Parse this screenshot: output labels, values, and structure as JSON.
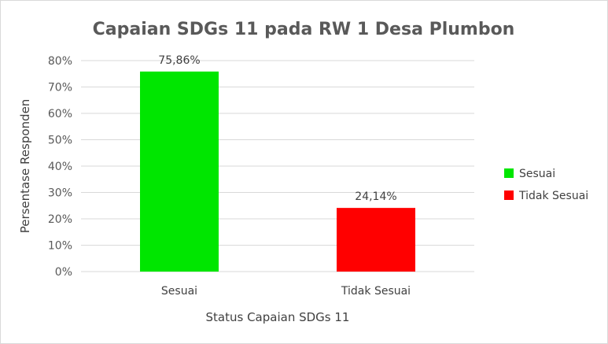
{
  "chart_data": {
    "type": "bar",
    "title": "Capaian SDGs 11 pada RW 1 Desa Plumbon",
    "xlabel": "Status Capaian SDGs 11",
    "ylabel": "Persentase Responden",
    "categories": [
      "Sesuai",
      "Tidak Sesuai"
    ],
    "values": [
      75.86,
      24.14
    ],
    "data_labels": [
      "75,86%",
      "24,14%"
    ],
    "colors": [
      "#00e600",
      "#ff0000"
    ],
    "ylim": [
      0,
      80
    ],
    "y_ticks": [
      0,
      10,
      20,
      30,
      40,
      50,
      60,
      70,
      80
    ],
    "y_tick_labels": [
      "0%",
      "10%",
      "20%",
      "30%",
      "40%",
      "50%",
      "60%",
      "70%",
      "80%"
    ],
    "grid": true,
    "legend_position": "right",
    "legend": [
      {
        "label": "Sesuai",
        "color": "#00e600"
      },
      {
        "label": "Tidak Sesuai",
        "color": "#ff0000"
      }
    ]
  }
}
